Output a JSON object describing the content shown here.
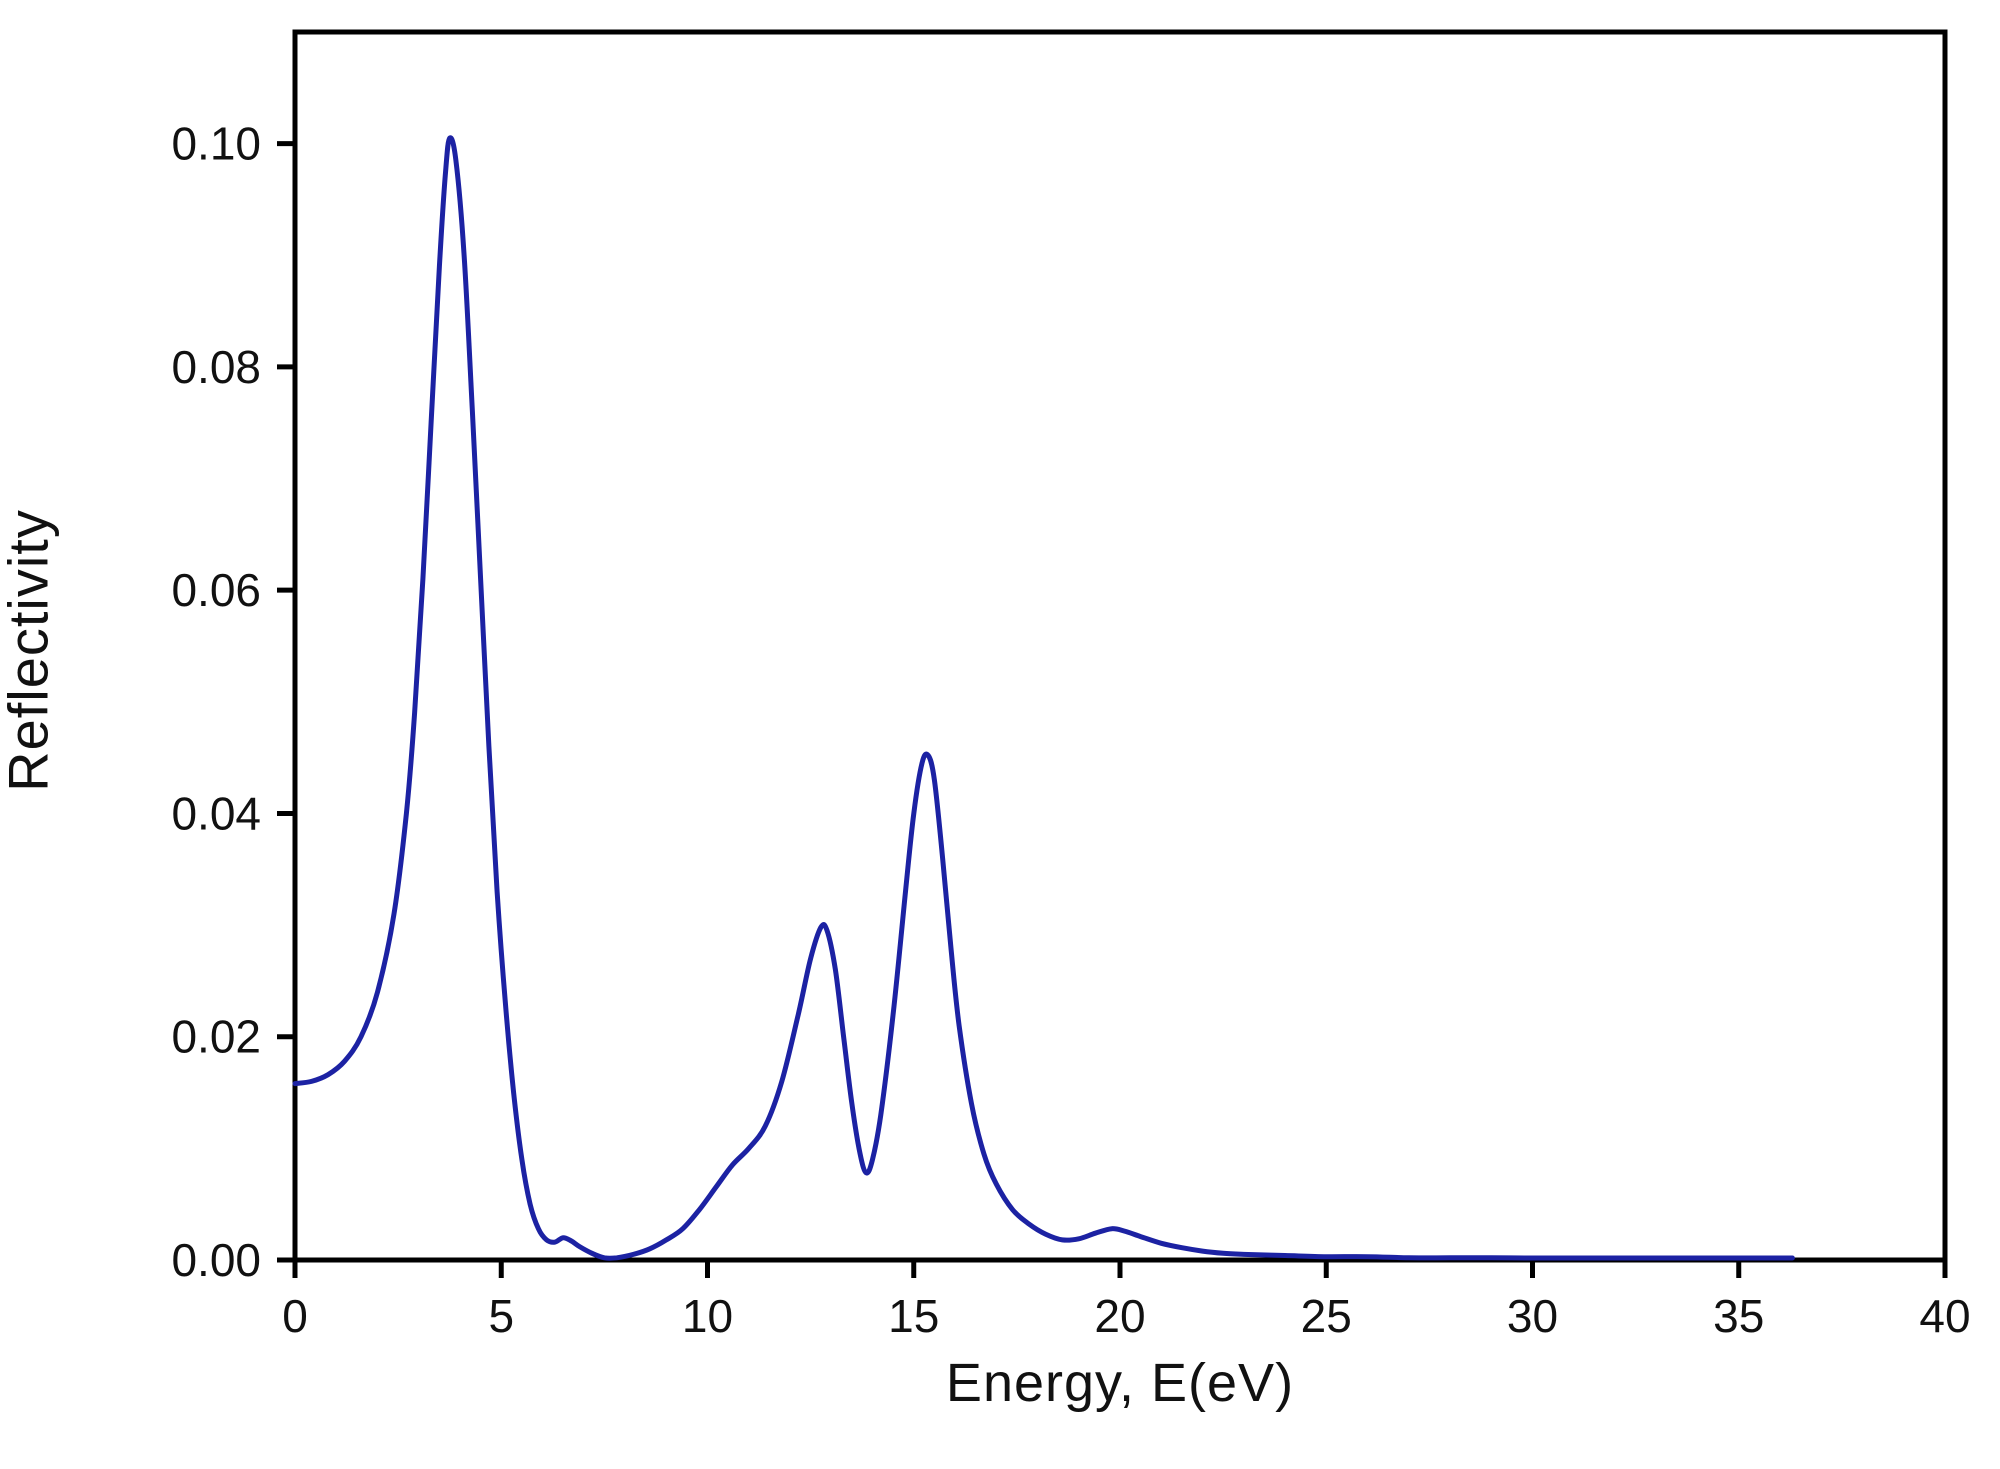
{
  "figure": {
    "background": "#ffffff",
    "axis_color": "#000000",
    "xlabel": "Energy, E(eV)",
    "ylabel": "Reflectivity"
  },
  "chart_data": {
    "type": "line",
    "title": "",
    "xlabel": "Energy, E(eV)",
    "ylabel": "Reflectivity",
    "xlim": [
      0,
      40
    ],
    "ylim": [
      0,
      0.11
    ],
    "grid": false,
    "legend": false,
    "x_ticks": [
      0,
      5,
      10,
      15,
      20,
      25,
      30,
      35,
      40
    ],
    "x_tick_labels": [
      "0",
      "5",
      "10",
      "15",
      "20",
      "25",
      "30",
      "35",
      "40"
    ],
    "y_ticks": [
      0.0,
      0.02,
      0.04,
      0.06,
      0.08,
      0.1
    ],
    "y_tick_labels": [
      "0.00",
      "0.02",
      "0.04",
      "0.06",
      "0.08",
      "0.10"
    ],
    "series": [
      {
        "name": "Reflectivity",
        "color": "#1c22a3",
        "x": [
          0,
          0.4,
          0.8,
          1.2,
          1.6,
          2.0,
          2.4,
          2.7,
          2.9,
          3.1,
          3.3,
          3.5,
          3.65,
          3.75,
          3.9,
          4.1,
          4.3,
          4.5,
          4.7,
          4.9,
          5.1,
          5.3,
          5.5,
          5.7,
          5.9,
          6.1,
          6.3,
          6.5,
          6.7,
          6.9,
          7.2,
          7.5,
          7.8,
          8.2,
          8.6,
          9.0,
          9.4,
          9.8,
          10.2,
          10.6,
          11.0,
          11.4,
          11.8,
          12.2,
          12.5,
          12.75,
          12.9,
          13.1,
          13.3,
          13.5,
          13.7,
          13.85,
          14.0,
          14.2,
          14.5,
          14.8,
          15.0,
          15.2,
          15.35,
          15.5,
          15.7,
          15.9,
          16.1,
          16.4,
          16.7,
          17.0,
          17.4,
          17.8,
          18.2,
          18.6,
          19.0,
          19.4,
          19.8,
          20.1,
          20.5,
          21.0,
          21.5,
          22.0,
          22.5,
          23.0,
          24.0,
          25.0,
          26.0,
          27.0,
          28.0,
          29.0,
          30.0,
          31.0,
          32.0,
          33.0,
          34.0,
          35.0,
          36.0,
          36.3
        ],
        "y": [
          0.0158,
          0.016,
          0.0166,
          0.0178,
          0.02,
          0.024,
          0.031,
          0.04,
          0.049,
          0.061,
          0.075,
          0.089,
          0.0975,
          0.1005,
          0.0985,
          0.09,
          0.076,
          0.061,
          0.046,
          0.033,
          0.023,
          0.015,
          0.009,
          0.005,
          0.0028,
          0.0018,
          0.0016,
          0.002,
          0.0017,
          0.0012,
          0.0006,
          0.0002,
          0.0002,
          0.0005,
          0.001,
          0.0018,
          0.0028,
          0.0045,
          0.0065,
          0.0085,
          0.01,
          0.012,
          0.016,
          0.022,
          0.027,
          0.0298,
          0.0295,
          0.026,
          0.02,
          0.014,
          0.0095,
          0.0078,
          0.009,
          0.013,
          0.022,
          0.033,
          0.04,
          0.0445,
          0.0452,
          0.043,
          0.036,
          0.028,
          0.021,
          0.014,
          0.0095,
          0.0068,
          0.0045,
          0.0032,
          0.0023,
          0.0018,
          0.0019,
          0.0024,
          0.0028,
          0.0026,
          0.0021,
          0.0015,
          0.0011,
          0.0008,
          0.0006,
          0.0005,
          0.0004,
          0.0003,
          0.0003,
          0.0002,
          0.0002,
          0.0002,
          0.0001,
          0.0001,
          0.0001,
          0.0001,
          0.0001,
          0.0001,
          0.0001,
          0.0001
        ]
      }
    ]
  }
}
